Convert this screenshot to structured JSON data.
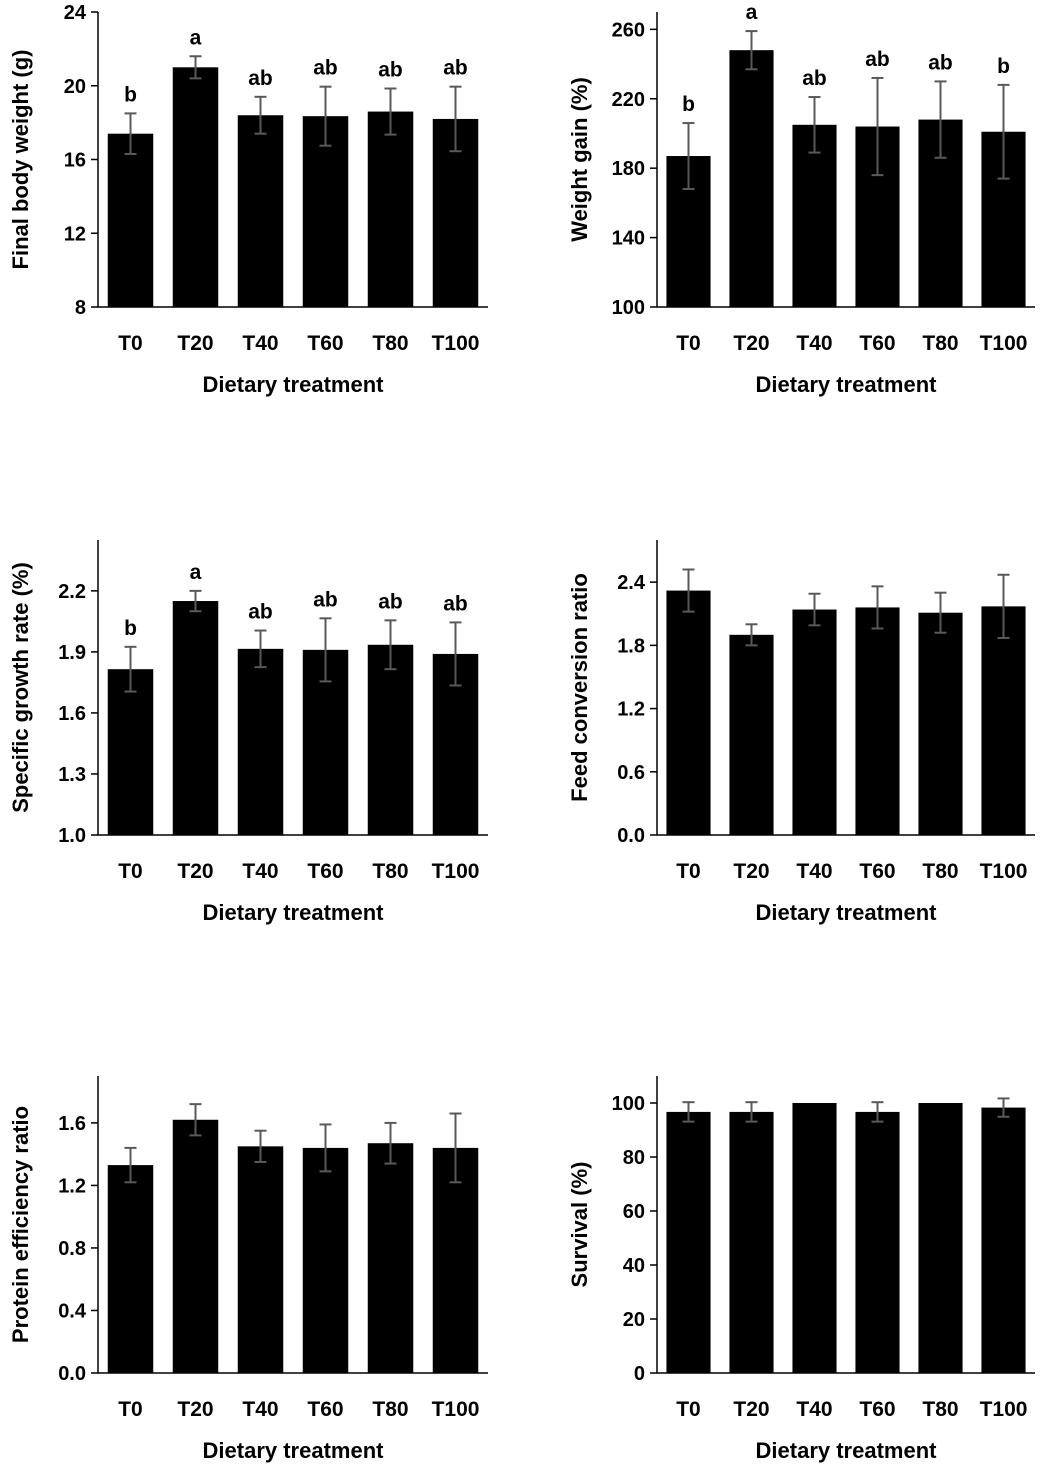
{
  "chart_data": [
    {
      "type": "bar",
      "categories": [
        "T0",
        "T20",
        "T40",
        "T60",
        "T80",
        "T100"
      ],
      "values": [
        17.4,
        21.0,
        18.4,
        18.35,
        18.6,
        18.2
      ],
      "error": [
        1.1,
        0.6,
        1.0,
        1.6,
        1.25,
        1.75
      ],
      "labels": [
        "b",
        "a",
        "ab",
        "ab",
        "ab",
        "ab"
      ],
      "xlabel": "Dietary treatment",
      "ylabel": "Final body weight (g)",
      "ylim": [
        8,
        24
      ],
      "yticks": [
        "8",
        "12",
        "16",
        "20",
        "24"
      ],
      "bar_color": "#000000",
      "error_color": "#595959"
    },
    {
      "type": "bar",
      "categories": [
        "T0",
        "T20",
        "T40",
        "T60",
        "T80",
        "T100"
      ],
      "values": [
        187,
        248,
        205,
        204,
        208,
        201
      ],
      "error": [
        19,
        11,
        16,
        28,
        22,
        27
      ],
      "labels": [
        "b",
        "a",
        "ab",
        "ab",
        "ab",
        "b"
      ],
      "xlabel": "Dietary treatment",
      "ylabel": "Weight gain (%)",
      "ylim": [
        100,
        270
      ],
      "yticks": [
        "100",
        "140",
        "180",
        "220",
        "260"
      ],
      "bar_color": "#000000",
      "error_color": "#595959"
    },
    {
      "type": "bar",
      "categories": [
        "T0",
        "T20",
        "T40",
        "T60",
        "T80",
        "T100"
      ],
      "values": [
        1.815,
        2.15,
        1.915,
        1.91,
        1.935,
        1.89
      ],
      "error": [
        0.11,
        0.05,
        0.09,
        0.155,
        0.12,
        0.155
      ],
      "labels": [
        "b",
        "a",
        "ab",
        "ab",
        "ab",
        "ab"
      ],
      "xlabel": "Dietary treatment",
      "ylabel": "Specific growth rate (%)",
      "ylim": [
        1.0,
        2.45
      ],
      "yticks": [
        "1.0",
        "1.3",
        "1.6",
        "1.9",
        "2.2"
      ],
      "bar_color": "#000000",
      "error_color": "#595959"
    },
    {
      "type": "bar",
      "categories": [
        "T0",
        "T20",
        "T40",
        "T60",
        "T80",
        "T100"
      ],
      "values": [
        2.32,
        1.9,
        2.14,
        2.16,
        2.11,
        2.17
      ],
      "error": [
        0.2,
        0.1,
        0.15,
        0.2,
        0.19,
        0.3
      ],
      "labels": [
        "",
        "",
        "",
        "",
        "",
        ""
      ],
      "xlabel": "Dietary treatment",
      "ylabel": "Feed conversion ratio",
      "ylim": [
        0,
        2.8
      ],
      "yticks": [
        "0.0",
        "0.6",
        "1.2",
        "1.8",
        "2.4"
      ],
      "bar_color": "#000000",
      "error_color": "#595959"
    },
    {
      "type": "bar",
      "categories": [
        "T0",
        "T20",
        "T40",
        "T60",
        "T80",
        "T100"
      ],
      "values": [
        1.33,
        1.62,
        1.45,
        1.44,
        1.47,
        1.44
      ],
      "error": [
        0.11,
        0.1,
        0.1,
        0.15,
        0.13,
        0.22
      ],
      "labels": [
        "",
        "",
        "",
        "",
        "",
        ""
      ],
      "xlabel": "Dietary treatment",
      "ylabel": "Protein efficiency ratio",
      "ylim": [
        0,
        1.9
      ],
      "yticks": [
        "0.0",
        "0.4",
        "0.8",
        "1.2",
        "1.6"
      ],
      "bar_color": "#000000",
      "error_color": "#595959"
    },
    {
      "type": "bar",
      "categories": [
        "T0",
        "T20",
        "T40",
        "T60",
        "T80",
        "T100"
      ],
      "values": [
        96.7,
        96.7,
        100,
        96.7,
        100,
        98.3
      ],
      "error": [
        3.6,
        3.6,
        0,
        3.6,
        0,
        3.4
      ],
      "labels": [
        "",
        "",
        "",
        "",
        "",
        ""
      ],
      "xlabel": "Dietary treatment",
      "ylabel": "Survival (%)",
      "ylim": [
        0,
        110
      ],
      "yticks": [
        "0",
        "20",
        "40",
        "60",
        "80",
        "100"
      ],
      "bar_color": "#000000",
      "error_color": "#595959"
    }
  ]
}
